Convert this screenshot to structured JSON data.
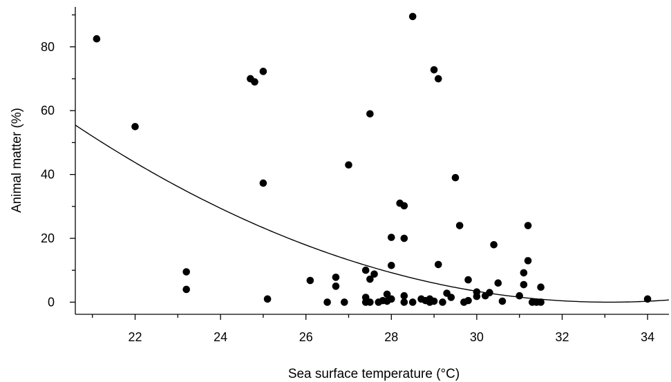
{
  "chart_data": {
    "type": "scatter",
    "xlabel": "Sea surface temperature (°C)",
    "ylabel": "Animal matter (%)",
    "xlim": [
      20.6,
      34.5
    ],
    "ylim": [
      -3.8,
      92.5
    ],
    "xticks": [
      22,
      24,
      26,
      28,
      30,
      32,
      34
    ],
    "yticks": [
      0,
      20,
      40,
      60,
      80
    ],
    "grid": false,
    "legend": "none",
    "colors": {
      "points": "#000000",
      "fit": "#000000",
      "axes": "#000000"
    },
    "series": [
      {
        "points": [
          [
            21.1,
            82.5
          ],
          [
            22.0,
            55.0
          ],
          [
            23.2,
            9.5
          ],
          [
            23.2,
            4.0
          ],
          [
            24.7,
            70.0
          ],
          [
            24.8,
            69.0
          ],
          [
            25.0,
            72.3
          ],
          [
            25.0,
            37.3
          ],
          [
            25.1,
            1.0
          ],
          [
            26.1,
            6.8
          ],
          [
            26.5,
            0.0
          ],
          [
            26.7,
            5.0
          ],
          [
            26.7,
            7.8
          ],
          [
            26.9,
            0.0
          ],
          [
            27.0,
            43.0
          ],
          [
            27.4,
            10.0
          ],
          [
            27.4,
            1.5
          ],
          [
            27.4,
            0.0
          ],
          [
            27.5,
            59.0
          ],
          [
            27.5,
            7.2
          ],
          [
            27.5,
            0.0
          ],
          [
            27.6,
            8.8
          ],
          [
            27.7,
            0.0
          ],
          [
            27.8,
            0.5
          ],
          [
            27.9,
            2.5
          ],
          [
            27.9,
            0.3
          ],
          [
            28.0,
            1.0
          ],
          [
            28.0,
            20.3
          ],
          [
            28.0,
            11.5
          ],
          [
            28.2,
            31.0
          ],
          [
            28.3,
            30.2
          ],
          [
            28.3,
            20.0
          ],
          [
            28.3,
            2.0
          ],
          [
            28.3,
            0.0
          ],
          [
            28.5,
            89.5
          ],
          [
            28.5,
            0.0
          ],
          [
            28.7,
            1.0
          ],
          [
            28.8,
            0.5
          ],
          [
            28.9,
            1.0
          ],
          [
            28.9,
            0.0
          ],
          [
            29.0,
            0.3
          ],
          [
            29.0,
            72.8
          ],
          [
            29.1,
            70.0
          ],
          [
            29.1,
            11.8
          ],
          [
            29.2,
            0.0
          ],
          [
            29.3,
            2.8
          ],
          [
            29.4,
            1.5
          ],
          [
            29.5,
            39.0
          ],
          [
            29.6,
            24.0
          ],
          [
            29.7,
            0.0
          ],
          [
            29.8,
            7.0
          ],
          [
            29.8,
            0.5
          ],
          [
            30.0,
            3.2
          ],
          [
            30.0,
            1.8
          ],
          [
            30.2,
            2.0
          ],
          [
            30.3,
            3.0
          ],
          [
            30.4,
            18.0
          ],
          [
            30.5,
            6.0
          ],
          [
            30.6,
            0.3
          ],
          [
            31.0,
            2.0
          ],
          [
            31.1,
            9.2
          ],
          [
            31.1,
            5.5
          ],
          [
            31.2,
            24.0
          ],
          [
            31.2,
            13.0
          ],
          [
            31.3,
            0.0
          ],
          [
            31.4,
            0.0
          ],
          [
            31.5,
            4.7
          ],
          [
            31.5,
            0.0
          ],
          [
            34.0,
            1.0
          ]
        ]
      }
    ],
    "fit_curve": {
      "type": "quadratic",
      "coefficients": {
        "a": 0.3548,
        "b": -23.49,
        "c": 388.8
      },
      "note_form": "y = a*x^2 + b*x + c"
    }
  }
}
